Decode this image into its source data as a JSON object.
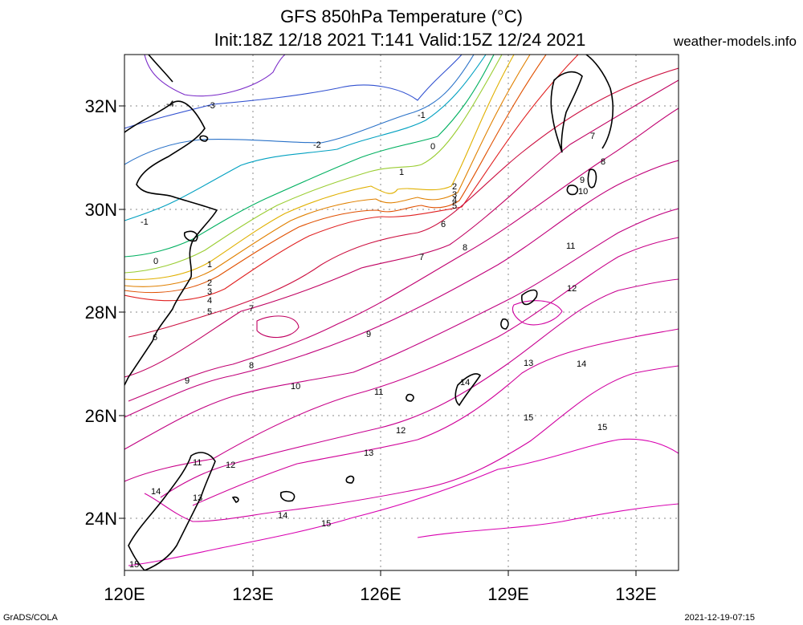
{
  "title_line1": "GFS 850hPa Temperature (°C)",
  "title_line2": "Init:18Z 12/18 2021 T:141 Valid:15Z 12/24 2021",
  "site": "weather-models.info",
  "credit": "GrADS/COLA",
  "timestamp": "2021-12-19-07:15",
  "map": {
    "lon_range": [
      120,
      133
    ],
    "lat_range": [
      23,
      33
    ],
    "lon_ticks": [
      "120E",
      "123E",
      "126E",
      "129E",
      "132E"
    ],
    "lat_ticks": [
      "32N",
      "30N",
      "28N",
      "26N",
      "24N"
    ],
    "gridlines": "dotted"
  },
  "contour_labels": [
    "-4",
    "-3",
    "-2",
    "-1",
    "0",
    "1",
    "2",
    "3",
    "4",
    "5",
    "6",
    "7",
    "8",
    "9",
    "10",
    "11",
    "12",
    "13",
    "14",
    "15"
  ],
  "colors": {
    "-4": "#7a2ac8",
    "-3": "#3050d0",
    "-2": "#2a72c8",
    "-1": "#00a0c0",
    "0": "#00b060",
    "1": "#9acd32",
    "2": "#e0b000",
    "3": "#e08000",
    "4": "#e05000",
    "5": "#e02020",
    "6": "#cc1040",
    "7": "#c00060",
    "8": "#c00070",
    "9": "#c0007a",
    "10": "#c00080",
    "11": "#c80088",
    "12": "#c80090",
    "13": "#d00098",
    "14": "#d000a0",
    "15": "#d800b0",
    "coast": "#000000",
    "grid": "#888888"
  }
}
